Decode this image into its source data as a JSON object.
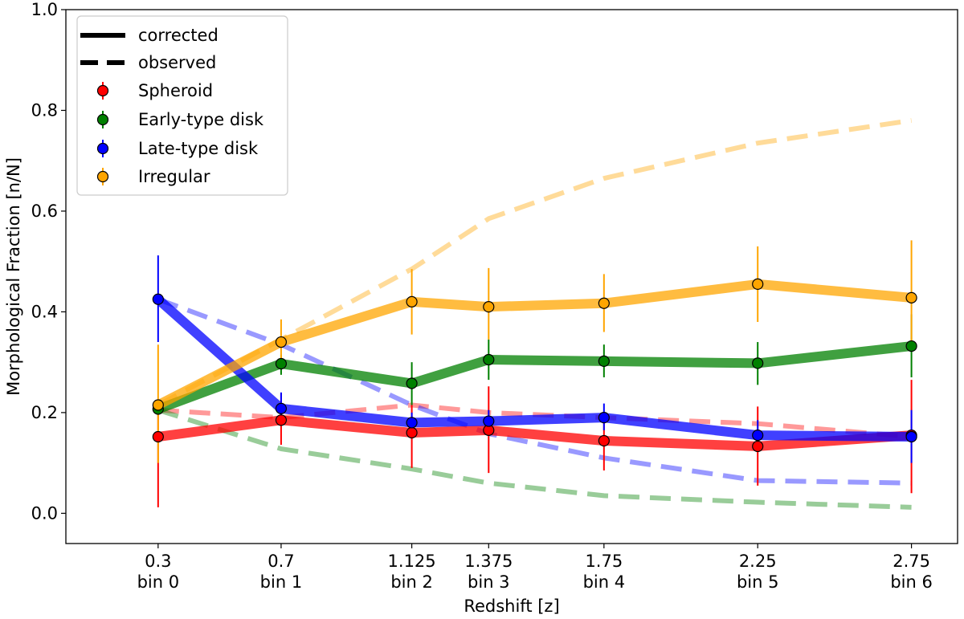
{
  "chart_data": {
    "type": "line",
    "xlabel": "Redshift [z]",
    "ylabel": "Morphological Fraction [n/N]",
    "xlim": [
      0.0,
      2.9
    ],
    "ylim": [
      -0.06,
      1.0
    ],
    "yticks": [
      0.0,
      0.2,
      0.4,
      0.6,
      0.8,
      1.0
    ],
    "ytick_labels": [
      "0.0",
      "0.2",
      "0.4",
      "0.6",
      "0.8",
      "1.0"
    ],
    "x": [
      0.3,
      0.7,
      1.125,
      1.375,
      1.75,
      2.25,
      2.75
    ],
    "xtick_labels": [
      {
        "value": "0.3",
        "bin": "bin 0"
      },
      {
        "value": "0.7",
        "bin": "bin 1"
      },
      {
        "value": "1.125",
        "bin": "bin 2"
      },
      {
        "value": "1.375",
        "bin": "bin 3"
      },
      {
        "value": "1.75",
        "bin": "bin 4"
      },
      {
        "value": "2.25",
        "bin": "bin 5"
      },
      {
        "value": "2.75",
        "bin": "bin 6"
      }
    ],
    "legend": {
      "position": "upper-left",
      "style_entries": [
        {
          "label": "corrected",
          "style": "solid"
        },
        {
          "label": "observed",
          "style": "dashed"
        }
      ]
    },
    "series": [
      {
        "name": "Spheroid",
        "color": "#ff0000",
        "corrected": [
          0.152,
          0.185,
          0.16,
          0.165,
          0.144,
          0.133,
          0.155
        ],
        "error_low": [
          0.012,
          0.136,
          0.09,
          0.08,
          0.085,
          0.055,
          0.04
        ],
        "error_high": [
          0.225,
          0.238,
          0.215,
          0.252,
          0.19,
          0.212,
          0.265
        ],
        "observed": [
          0.205,
          0.19,
          0.215,
          0.2,
          0.19,
          0.178,
          0.152
        ]
      },
      {
        "name": "Early-type disk",
        "color": "#008000",
        "corrected": [
          0.207,
          0.297,
          0.258,
          0.305,
          0.302,
          0.298,
          0.332
        ],
        "error_low": [
          0.195,
          0.275,
          0.215,
          0.265,
          0.27,
          0.255,
          0.27
        ],
        "error_high": [
          0.22,
          0.315,
          0.3,
          0.345,
          0.335,
          0.34,
          0.395
        ],
        "observed": [
          0.205,
          0.128,
          0.088,
          0.06,
          0.035,
          0.022,
          0.012
        ]
      },
      {
        "name": "Late-type disk",
        "color": "#0000ff",
        "corrected": [
          0.425,
          0.208,
          0.18,
          0.183,
          0.19,
          0.155,
          0.152
        ],
        "error_low": [
          0.34,
          0.18,
          0.16,
          0.16,
          0.165,
          0.125,
          0.1
        ],
        "error_high": [
          0.512,
          0.24,
          0.2,
          0.205,
          0.218,
          0.185,
          0.205
        ],
        "observed": [
          0.425,
          0.335,
          0.215,
          0.158,
          0.11,
          0.065,
          0.06
        ]
      },
      {
        "name": "Irregular",
        "color": "#ffa500",
        "corrected": [
          0.215,
          0.34,
          0.42,
          0.41,
          0.417,
          0.455,
          0.428
        ],
        "error_low": [
          0.1,
          0.3,
          0.355,
          0.345,
          0.36,
          0.38,
          0.34
        ],
        "error_high": [
          0.335,
          0.385,
          0.485,
          0.487,
          0.475,
          0.53,
          0.542
        ],
        "observed": [
          0.215,
          0.345,
          0.485,
          0.585,
          0.665,
          0.735,
          0.78
        ]
      }
    ]
  }
}
